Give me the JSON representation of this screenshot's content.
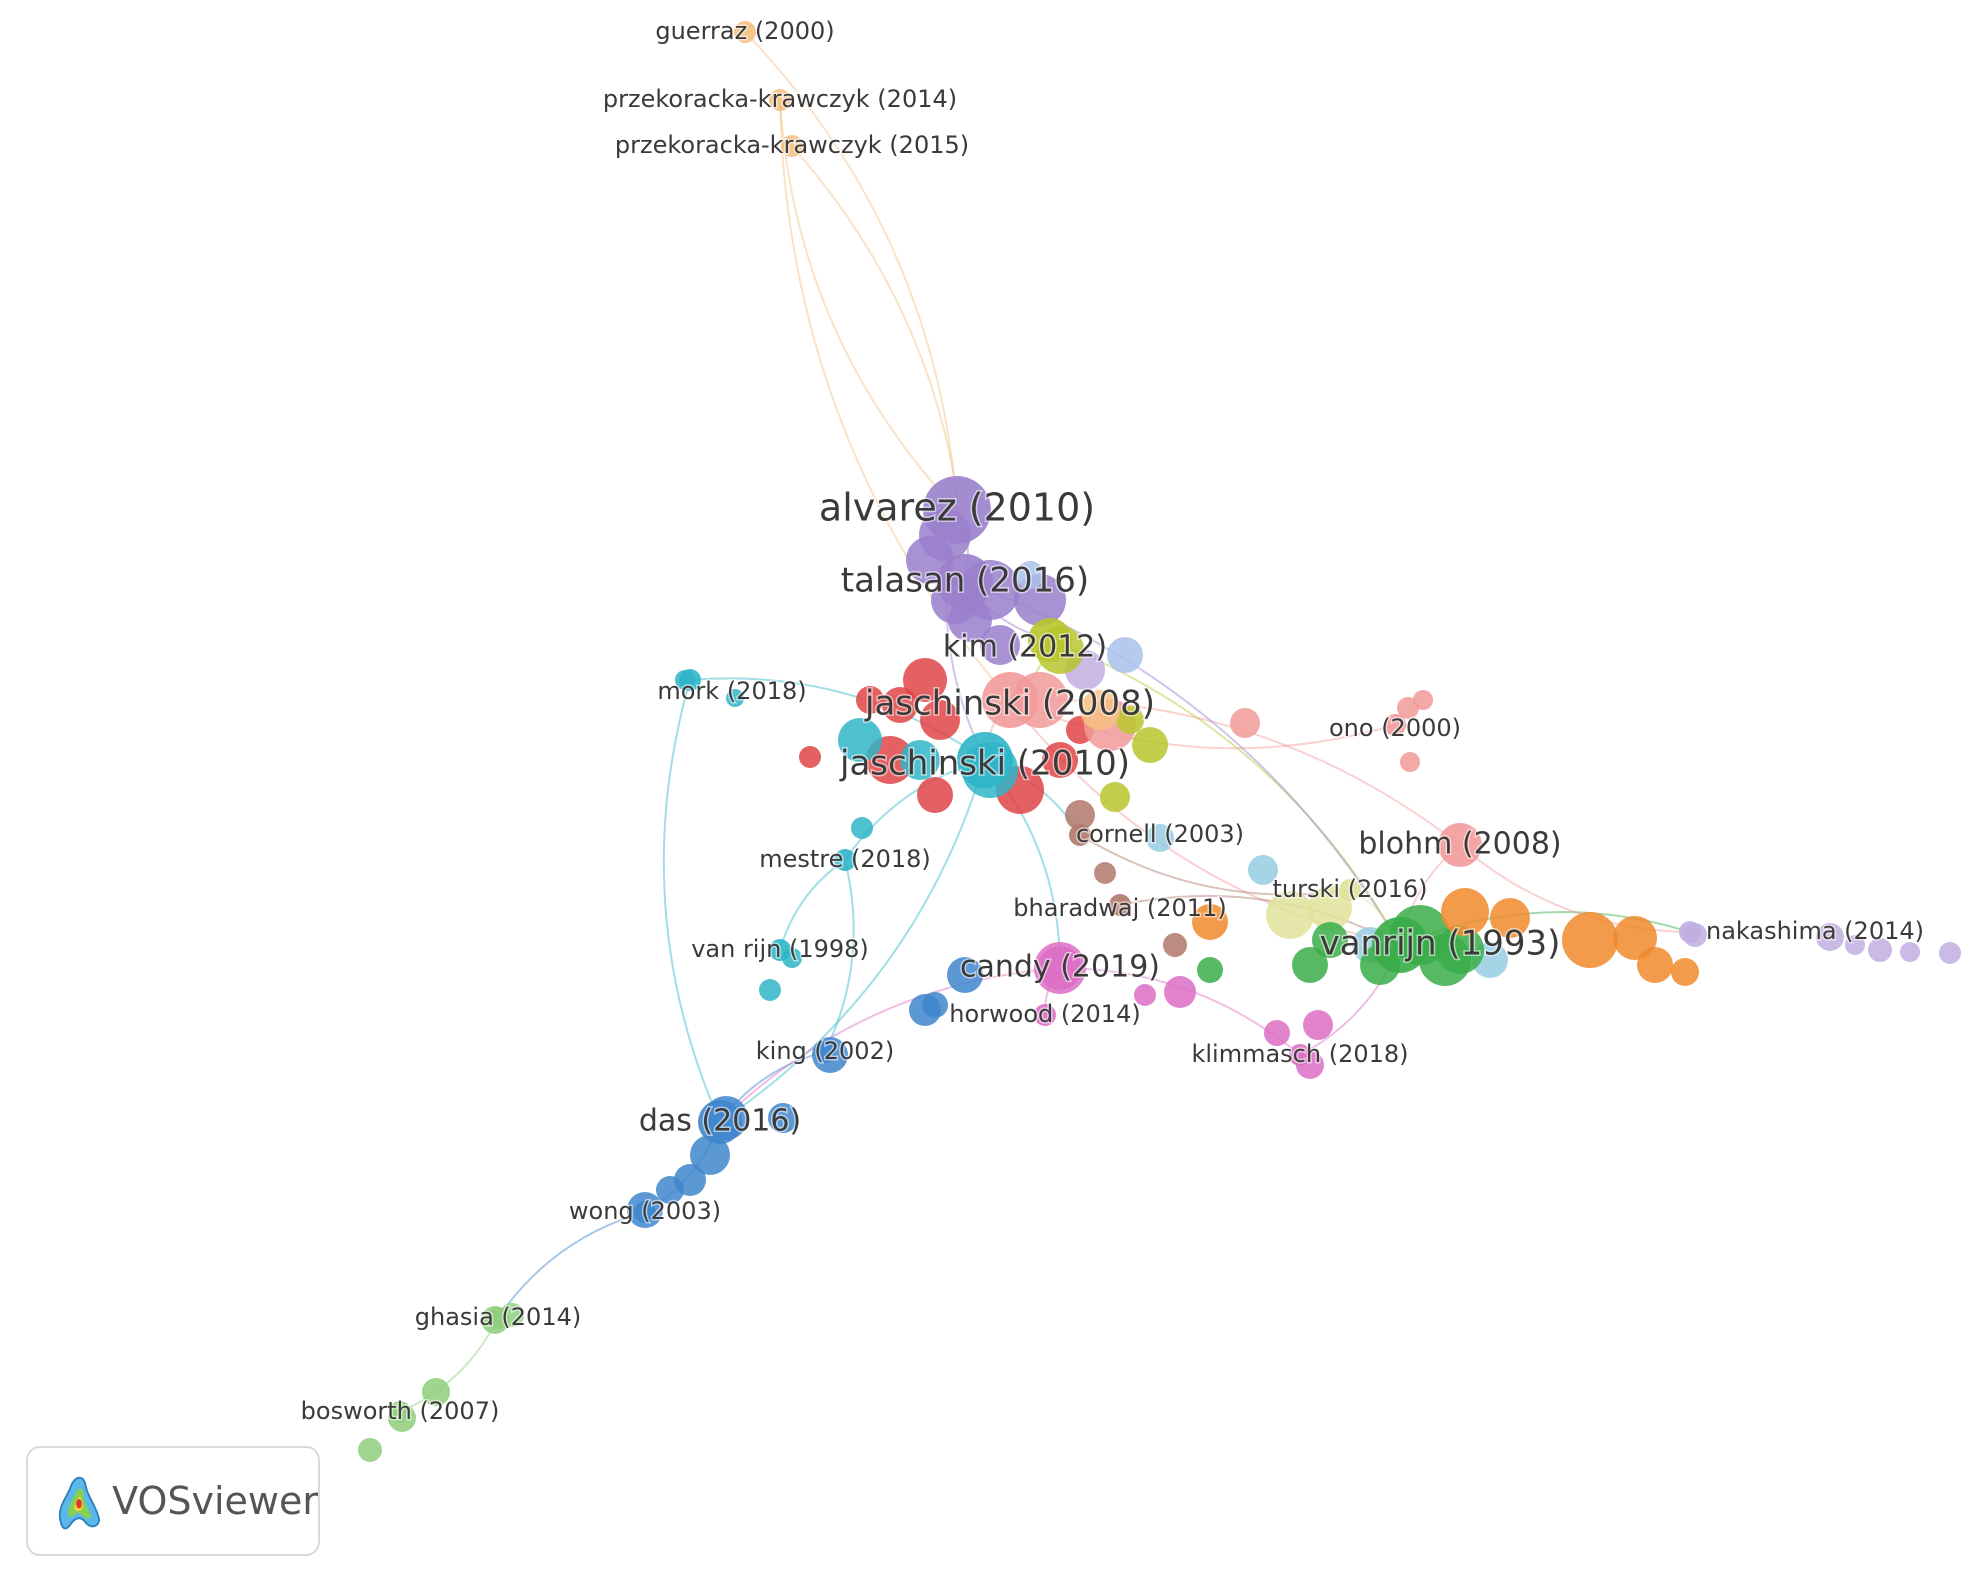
{
  "app": {
    "name": "VOSviewer"
  },
  "colors": {
    "purple": "#9a7fcc",
    "red": "#df4447",
    "cyan": "#2fb5c8",
    "blue": "#3f86cc",
    "green": "#39ad48",
    "orange": "#f08a2a",
    "peach": "#f5bf82",
    "pink": "#f29a9a",
    "olive": "#b9c52e",
    "lightgreen": "#8fce7d",
    "magenta": "#dc6fc4",
    "brown": "#b0786a",
    "lightblue": "#94cde0",
    "paleyellow": "#dfe39a",
    "lavender": "#c1aee0",
    "periwinkle": "#a9c1ea"
  },
  "nodes": [
    {
      "id": "guerraz2000",
      "label": "guerraz (2000)",
      "color": "peach",
      "size": "small"
    },
    {
      "id": "pk2014",
      "label": "przekoracka-krawczyk (2014)",
      "color": "peach",
      "size": "small"
    },
    {
      "id": "pk2015",
      "label": "przekoracka-krawczyk (2015)",
      "color": "peach",
      "size": "small"
    },
    {
      "id": "alvarez2010",
      "label": "alvarez (2010)",
      "color": "purple",
      "size": "xlarge"
    },
    {
      "id": "talasan2016",
      "label": "talasan (2016)",
      "color": "purple",
      "size": "large"
    },
    {
      "id": "kim2012",
      "label": "kim (2012)",
      "color": "olive",
      "size": "medium"
    },
    {
      "id": "jaschinski2008",
      "label": "jaschinski (2008)",
      "color": "pink",
      "size": "large"
    },
    {
      "id": "jaschinski2010",
      "label": "jaschinski (2010)",
      "color": "cyan",
      "size": "large"
    },
    {
      "id": "mork2018",
      "label": "mork (2018)",
      "color": "cyan",
      "size": "small"
    },
    {
      "id": "ono2000",
      "label": "ono (2000)",
      "color": "pink",
      "size": "small"
    },
    {
      "id": "cornell2003",
      "label": "cornell (2003)",
      "color": "brown",
      "size": "small"
    },
    {
      "id": "blohm2008",
      "label": "blohm (2008)",
      "color": "pink",
      "size": "medium"
    },
    {
      "id": "mestre2018",
      "label": "mestre (2018)",
      "color": "cyan",
      "size": "small"
    },
    {
      "id": "turski2016",
      "label": "turski (2016)",
      "color": "paleyellow",
      "size": "small"
    },
    {
      "id": "bharadwaj2011",
      "label": "bharadwaj (2011)",
      "color": "brown",
      "size": "small"
    },
    {
      "id": "vanrijn1993",
      "label": "vanrijn (1993)",
      "color": "green",
      "size": "large"
    },
    {
      "id": "nakashima2014",
      "label": "nakashima (2014)",
      "color": "lavender",
      "size": "small"
    },
    {
      "id": "vanrijn1998",
      "label": "van rijn (1998)",
      "color": "cyan",
      "size": "small"
    },
    {
      "id": "candy2019",
      "label": "candy (2019)",
      "color": "magenta",
      "size": "medium"
    },
    {
      "id": "horwood2014",
      "label": "horwood (2014)",
      "color": "magenta",
      "size": "small"
    },
    {
      "id": "klimmasch2018",
      "label": "klimmasch (2018)",
      "color": "magenta",
      "size": "small"
    },
    {
      "id": "king2002",
      "label": "king (2002)",
      "color": "blue",
      "size": "small"
    },
    {
      "id": "das2016",
      "label": "das (2016)",
      "color": "blue",
      "size": "medium"
    },
    {
      "id": "wong2003",
      "label": "wong (2003)",
      "color": "blue",
      "size": "small"
    },
    {
      "id": "ghasia2014",
      "label": "ghasia (2014)",
      "color": "lightgreen",
      "size": "small"
    },
    {
      "id": "bosworth2007",
      "label": "bosworth (2007)",
      "color": "lightgreen",
      "size": "small"
    }
  ],
  "links": [
    [
      "guerraz2000",
      "alvarez2010"
    ],
    [
      "pk2014",
      "alvarez2010"
    ],
    [
      "pk2015",
      "talasan2016"
    ],
    [
      "pk2014",
      "jaschinski2008"
    ],
    [
      "alvarez2010",
      "talasan2016"
    ],
    [
      "talasan2016",
      "kim2012"
    ],
    [
      "kim2012",
      "jaschinski2008"
    ],
    [
      "jaschinski2008",
      "jaschinski2010"
    ],
    [
      "mork2018",
      "jaschinski2010"
    ],
    [
      "jaschinski2008",
      "ono2000"
    ],
    [
      "jaschinski2008",
      "blohm2008"
    ],
    [
      "jaschinski2010",
      "mestre2018"
    ],
    [
      "jaschinski2010",
      "cornell2003"
    ],
    [
      "jaschinski2008",
      "vanrijn1993"
    ],
    [
      "kim2012",
      "vanrijn1993"
    ],
    [
      "cornell2003",
      "turski2016"
    ],
    [
      "bharadwaj2011",
      "vanrijn1993"
    ],
    [
      "blohm2008",
      "vanrijn1993"
    ],
    [
      "vanrijn1993",
      "nakashima2014"
    ],
    [
      "mestre2018",
      "vanrijn1998"
    ],
    [
      "jaschinski2010",
      "candy2019"
    ],
    [
      "candy2019",
      "horwood2014"
    ],
    [
      "candy2019",
      "klimmasch2018"
    ],
    [
      "klimmasch2018",
      "vanrijn1993"
    ],
    [
      "mestre2018",
      "king2002"
    ],
    [
      "king2002",
      "das2016"
    ],
    [
      "jaschinski2010",
      "das2016"
    ],
    [
      "candy2019",
      "das2016"
    ],
    [
      "das2016",
      "wong2003"
    ],
    [
      "wong2003",
      "ghasia2014"
    ],
    [
      "ghasia2014",
      "bosworth2007"
    ],
    [
      "mork2018",
      "das2016"
    ],
    [
      "talasan2016",
      "vanrijn1993"
    ],
    [
      "blohm2008",
      "nakashima2014"
    ],
    [
      "turski2016",
      "vanrijn1993"
    ],
    [
      "alvarez2010",
      "jaschinski2010"
    ]
  ]
}
